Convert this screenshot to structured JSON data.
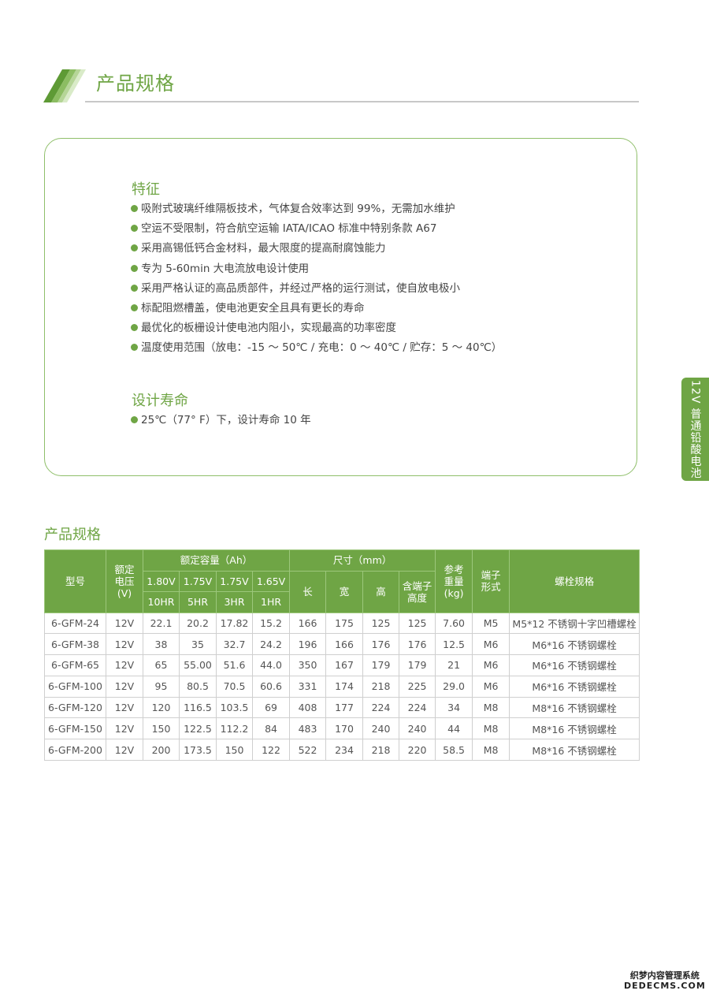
{
  "header": {
    "title": "产品规格"
  },
  "features": {
    "heading": "特征",
    "items": [
      "吸附式玻璃纤维隔板技术，气体复合效率达到 99%，无需加水维护",
      "空运不受限制，符合航空运输 IATA/ICAO 标准中特别条款 A67",
      "采用高锡低钙合金材料，最大限度的提高耐腐蚀能力",
      "专为 5-60min 大电流放电设计使用",
      "采用严格认证的高品质部件，并经过严格的运行测试，使自放电极小",
      "标配阻燃槽盖，使电池更安全且具有更长的寿命",
      "最优化的板栅设计使电池内阻小，实现最高的功率密度",
      "温度使用范围（放电：-15 ～ 50℃ / 充电：0 ～ 40℃ / 贮存：5 ～ 40℃）"
    ]
  },
  "design_life": {
    "heading": "设计寿命",
    "items": [
      "25℃（77° F）下，设计寿命 10 年"
    ]
  },
  "side_tab": "12V 普通铅酸电池",
  "spec_table": {
    "heading": "产品规格",
    "headers": {
      "model": "型号",
      "voltage": "额定电压(V)",
      "capacity": "额定容量（Ah）",
      "capacity_sub": [
        "1.80V",
        "1.75V",
        "1.75V",
        "1.65V"
      ],
      "rates": [
        "10HR",
        "5HR",
        "3HR",
        "1HR"
      ],
      "dimensions": "尺寸（mm）",
      "dim_sub": [
        "长",
        "宽",
        "高",
        "含端子高度"
      ],
      "weight": "参考重量(kg)",
      "terminal": "端子形式",
      "bolt": "螺栓规格"
    },
    "rows": [
      [
        "6-GFM-24",
        "12V",
        "22.1",
        "20.2",
        "17.82",
        "15.2",
        "166",
        "175",
        "125",
        "125",
        "7.60",
        "M5",
        "M5*12 不锈钢十字凹槽螺栓"
      ],
      [
        "6-GFM-38",
        "12V",
        "38",
        "35",
        "32.7",
        "24.2",
        "196",
        "166",
        "176",
        "176",
        "12.5",
        "M6",
        "M6*16 不锈钢螺栓"
      ],
      [
        "6-GFM-65",
        "12V",
        "65",
        "55.00",
        "51.6",
        "44.0",
        "350",
        "167",
        "179",
        "179",
        "21",
        "M6",
        "M6*16 不锈钢螺栓"
      ],
      [
        "6-GFM-100",
        "12V",
        "95",
        "80.5",
        "70.5",
        "60.6",
        "331",
        "174",
        "218",
        "225",
        "29.0",
        "M6",
        "M6*16 不锈钢螺栓"
      ],
      [
        "6-GFM-120",
        "12V",
        "120",
        "116.5",
        "103.5",
        "69",
        "408",
        "177",
        "224",
        "224",
        "34",
        "M8",
        "M8*16 不锈钢螺栓"
      ],
      [
        "6-GFM-150",
        "12V",
        "150",
        "122.5",
        "112.2",
        "84",
        "483",
        "170",
        "240",
        "240",
        "44",
        "M8",
        "M8*16 不锈钢螺栓"
      ],
      [
        "6-GFM-200",
        "12V",
        "200",
        "173.5",
        "150",
        "122",
        "522",
        "234",
        "218",
        "220",
        "58.5",
        "M8",
        "M8*16 不锈钢螺栓"
      ]
    ]
  },
  "watermark": {
    "line1": "织梦内容管理系统",
    "line2": "DEDECMS.COM"
  },
  "colors": {
    "accent": "#6fa545",
    "border": "#8fbf6a"
  }
}
